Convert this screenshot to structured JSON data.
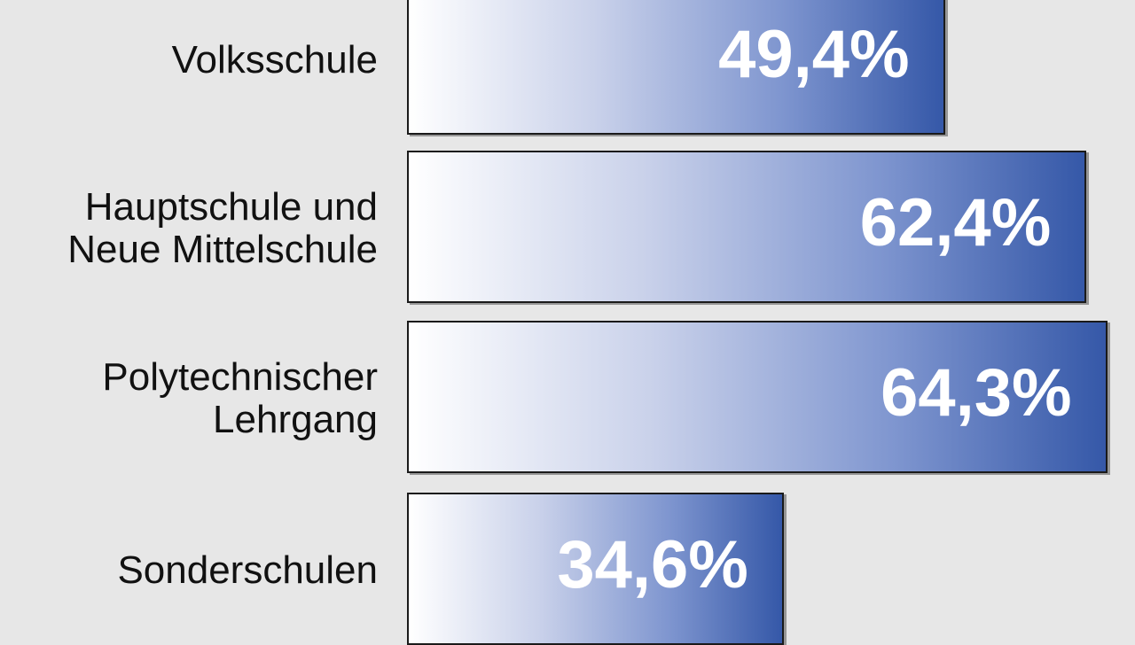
{
  "chart_data": {
    "type": "bar",
    "orientation": "horizontal",
    "categories": [
      "Volksschule",
      "Hauptschule und\nNeue Mittelschule",
      "Polytechnischer\nLehrgang",
      "Sonderschulen"
    ],
    "values": [
      49.4,
      62.4,
      64.3,
      34.6
    ],
    "value_labels": [
      "49,4%",
      "62,4%",
      "64,3%",
      "34,6%"
    ],
    "unit": "%",
    "xlim": [
      0,
      100
    ],
    "grid": false,
    "legend": "none"
  },
  "colors": {
    "background": "#e7e7e7",
    "bar_gradient_start": "#ffffff",
    "bar_gradient_end": "#3558a8",
    "bar_border": "#1a1a1a",
    "label_text": "#111111",
    "value_text": "#ffffff"
  }
}
